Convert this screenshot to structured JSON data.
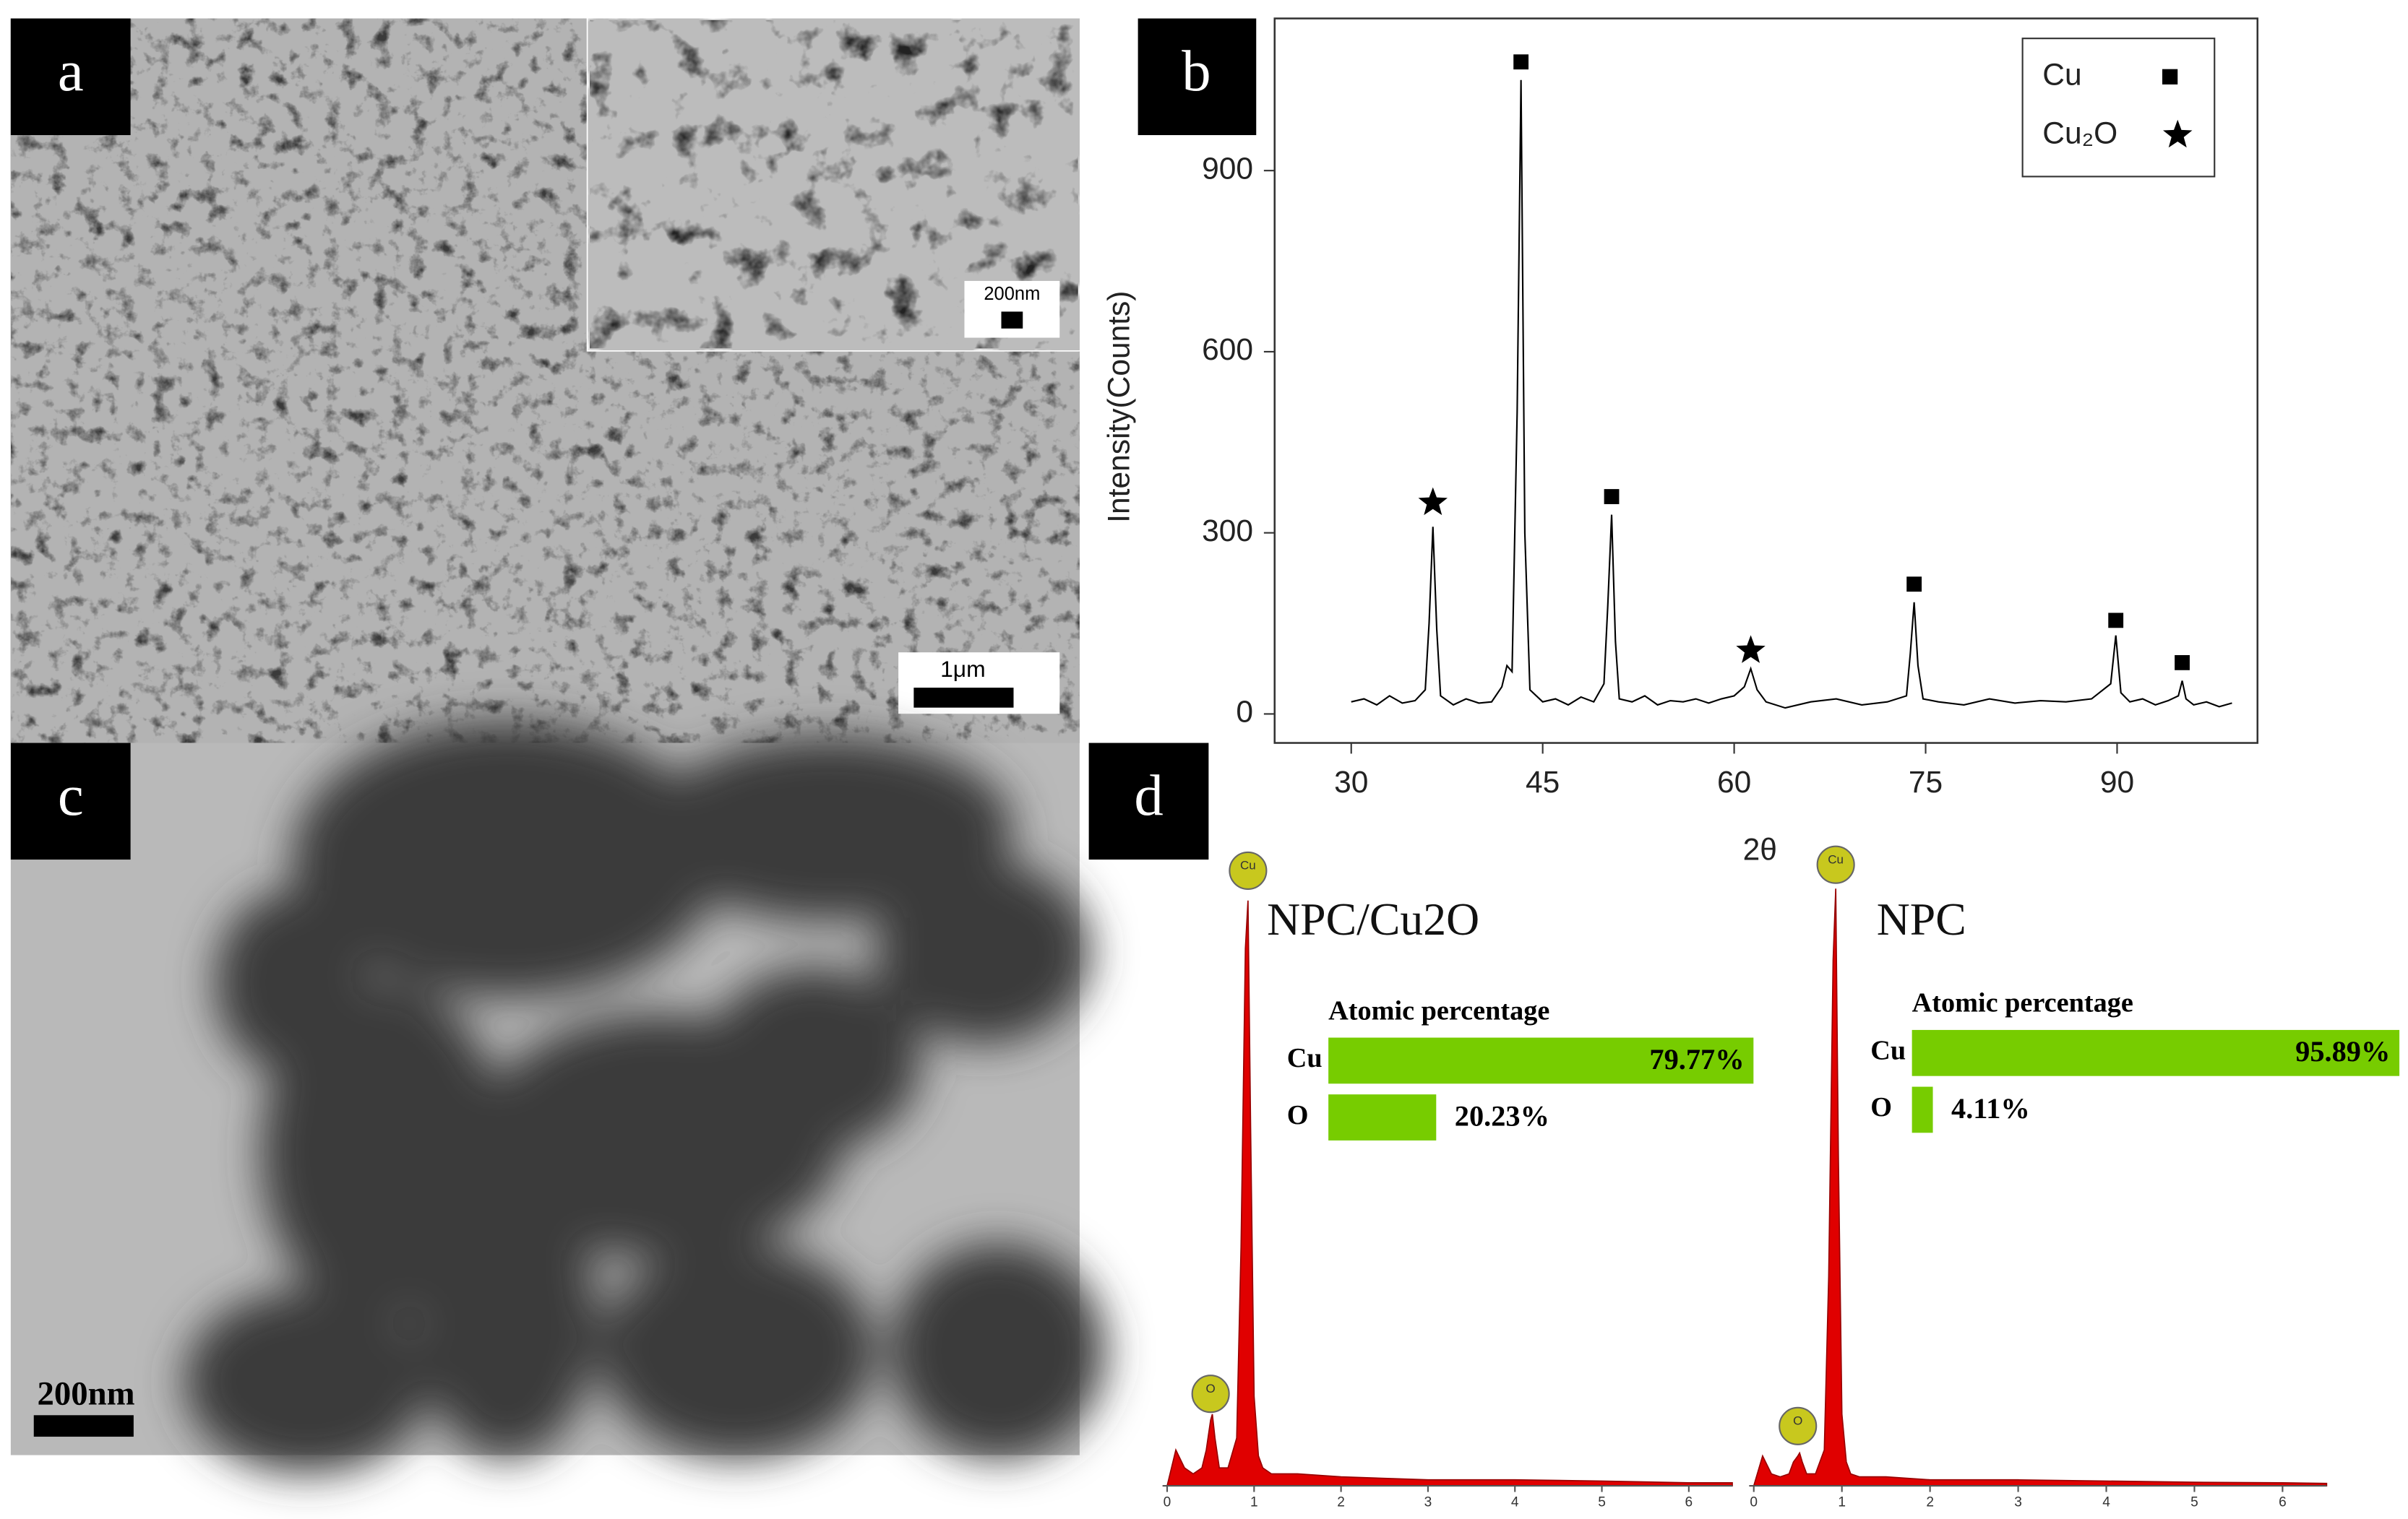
{
  "panels": {
    "a": {
      "label": "a",
      "scale_bar": "1μm",
      "inset_scale_bar": "200nm"
    },
    "b": {
      "label": "b"
    },
    "c": {
      "label": "c",
      "scale_bar": "200nm"
    },
    "d": {
      "label": "d"
    }
  },
  "chart_data": [
    {
      "type": "line",
      "x_label": "2θ",
      "y_label": "Intensity(Counts)",
      "color": "#000000",
      "xlim": [
        24,
        101
      ],
      "ylim": [
        -48,
        1152
      ],
      "xticks": [
        30,
        45,
        60,
        75,
        90
      ],
      "yticks": [
        0,
        300,
        600,
        900
      ],
      "x": [
        30,
        31,
        32,
        33,
        34,
        35,
        35.8,
        36.1,
        36.4,
        36.7,
        37,
        38,
        39,
        40,
        41,
        41.8,
        42.2,
        42.6,
        43.0,
        43.3,
        43.6,
        44,
        45,
        46,
        47,
        48,
        49,
        49.8,
        50.1,
        50.4,
        50.7,
        51,
        52,
        53,
        54,
        55,
        56,
        57,
        58,
        59,
        60,
        60.8,
        61.3,
        61.8,
        62.5,
        64,
        66,
        68,
        70,
        72,
        73.5,
        73.8,
        74.1,
        74.4,
        74.8,
        76,
        78,
        80,
        82,
        84,
        86,
        88,
        89.5,
        89.9,
        90.3,
        91,
        92,
        93,
        94,
        94.8,
        95.1,
        95.4,
        96,
        97,
        98,
        99
      ],
      "values": [
        20,
        25,
        15,
        30,
        18,
        22,
        40,
        150,
        310,
        140,
        30,
        15,
        25,
        18,
        20,
        45,
        80,
        70,
        500,
        1050,
        300,
        40,
        20,
        25,
        15,
        28,
        20,
        50,
        180,
        330,
        120,
        25,
        20,
        30,
        15,
        22,
        20,
        25,
        18,
        25,
        30,
        45,
        75,
        40,
        20,
        10,
        20,
        25,
        15,
        20,
        30,
        100,
        185,
        80,
        25,
        20,
        15,
        25,
        18,
        22,
        20,
        25,
        50,
        130,
        35,
        20,
        25,
        15,
        22,
        30,
        55,
        25,
        15,
        20,
        12,
        18
      ],
      "legend": [
        {
          "name": "Cu",
          "symbol": "square"
        },
        {
          "name": "Cu₂O",
          "symbol": "star"
        }
      ],
      "legend_position": "upper right",
      "markers": [
        {
          "x": 43.3,
          "y": 1080,
          "symbol": "square"
        },
        {
          "x": 50.4,
          "y": 360,
          "symbol": "square"
        },
        {
          "x": 74.1,
          "y": 215,
          "symbol": "square"
        },
        {
          "x": 89.9,
          "y": 155,
          "symbol": "square"
        },
        {
          "x": 95.1,
          "y": 85,
          "symbol": "square"
        },
        {
          "x": 36.4,
          "y": 350,
          "symbol": "star"
        },
        {
          "x": 61.3,
          "y": 105,
          "symbol": "star"
        }
      ]
    },
    {
      "type": "area",
      "title": "NPC/Cu2O",
      "color": "#e00000",
      "xlim": [
        0,
        6.5
      ],
      "ylim": [
        0,
        110
      ],
      "xticks": [
        0,
        1,
        2,
        3,
        4,
        5,
        6
      ],
      "x": [
        0,
        0.1,
        0.2,
        0.3,
        0.4,
        0.45,
        0.5,
        0.52,
        0.55,
        0.6,
        0.7,
        0.8,
        0.85,
        0.9,
        0.93,
        0.96,
        1.0,
        1.05,
        1.1,
        1.2,
        1.5,
        2,
        3,
        4,
        5,
        6,
        6.5
      ],
      "values": [
        0,
        6,
        3,
        2,
        3,
        6,
        11,
        12,
        8,
        3,
        3,
        8,
        40,
        90,
        98,
        60,
        15,
        5,
        3,
        2,
        2,
        1.5,
        1,
        1,
        0.8,
        0.5,
        0.5
      ],
      "peak_labels": [
        {
          "label": "O",
          "x": 0.5,
          "y": 15.4
        },
        {
          "label": "Cu",
          "x": 0.93,
          "y": 103
        }
      ],
      "composition": {
        "title": "Atomic percentage",
        "categories": [
          "Cu",
          "O"
        ],
        "values": [
          79.77,
          20.23
        ],
        "value_labels": [
          "79.77%",
          "20.23%"
        ],
        "color": "#77cc00",
        "xlim": [
          0,
          100
        ]
      }
    },
    {
      "type": "area",
      "title": "NPC",
      "color": "#e00000",
      "xlim": [
        0,
        6.5
      ],
      "ylim": [
        0,
        110
      ],
      "xticks": [
        0,
        1,
        2,
        3,
        4,
        5,
        6
      ],
      "x": [
        0,
        0.1,
        0.2,
        0.3,
        0.4,
        0.45,
        0.5,
        0.52,
        0.55,
        0.6,
        0.7,
        0.8,
        0.85,
        0.9,
        0.93,
        0.96,
        1.0,
        1.05,
        1.1,
        1.2,
        1.5,
        2,
        3,
        4,
        5,
        6,
        6.5
      ],
      "values": [
        0,
        5,
        2,
        1.5,
        2,
        4,
        5,
        5.5,
        4,
        2,
        2,
        6,
        35,
        88,
        100,
        55,
        12,
        4,
        2,
        1.5,
        1.5,
        1,
        1,
        0.8,
        0.6,
        0.5,
        0.4
      ],
      "peak_labels": [
        {
          "label": "O",
          "x": 0.5,
          "y": 10
        },
        {
          "label": "Cu",
          "x": 0.93,
          "y": 104
        }
      ],
      "composition": {
        "title": "Atomic percentage",
        "categories": [
          "Cu",
          "O"
        ],
        "values": [
          95.89,
          4.11
        ],
        "value_labels": [
          "95.89%",
          "4.11%"
        ],
        "color": "#77cc00",
        "xlim": [
          0,
          100
        ]
      }
    }
  ]
}
